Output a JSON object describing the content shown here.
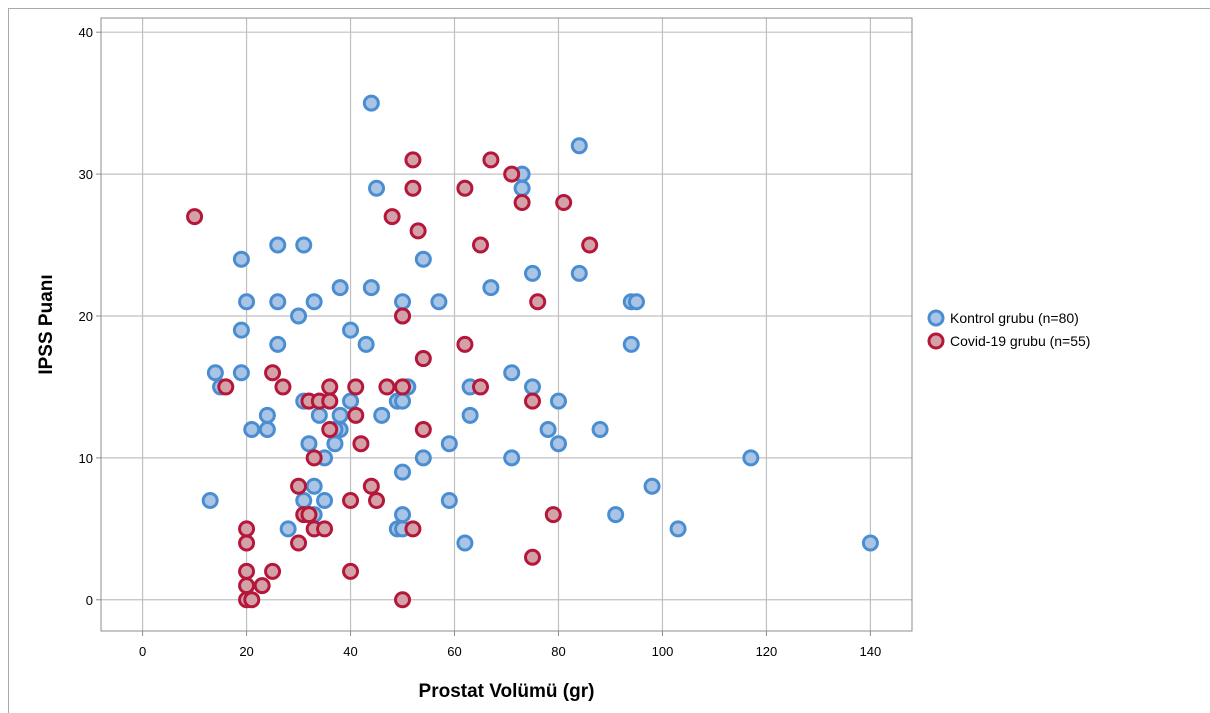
{
  "chart_data": {
    "type": "scatter",
    "xlabel": "Prostat Volümü (gr)",
    "ylabel": "IPSS Puanı",
    "xlim": [
      -8,
      148
    ],
    "ylim": [
      -2.2,
      41
    ],
    "xticks": [
      "0",
      "20",
      "40",
      "60",
      "80",
      "100",
      "120",
      "140"
    ],
    "yticks": [
      "0",
      "10",
      "20",
      "30",
      "40"
    ],
    "grid": true,
    "legend_position": "right",
    "series": [
      {
        "name": "Kontrol grubu (n=80)",
        "fill": "#a9c4e4",
        "stroke": "#4a8ed1",
        "points": [
          [
            44,
            35
          ],
          [
            45,
            29
          ],
          [
            84,
            32
          ],
          [
            73,
            30
          ],
          [
            73,
            29
          ],
          [
            19,
            24
          ],
          [
            26,
            25
          ],
          [
            31,
            25
          ],
          [
            54,
            24
          ],
          [
            75,
            23
          ],
          [
            84,
            23
          ],
          [
            20,
            21
          ],
          [
            26,
            21
          ],
          [
            33,
            21
          ],
          [
            30,
            20
          ],
          [
            38,
            22
          ],
          [
            44,
            22
          ],
          [
            50,
            21
          ],
          [
            50,
            20
          ],
          [
            57,
            21
          ],
          [
            67,
            22
          ],
          [
            94,
            21
          ],
          [
            95,
            21
          ],
          [
            19,
            19
          ],
          [
            40,
            19
          ],
          [
            26,
            18
          ],
          [
            43,
            18
          ],
          [
            94,
            18
          ],
          [
            14,
            16
          ],
          [
            15,
            15
          ],
          [
            19,
            16
          ],
          [
            71,
            16
          ],
          [
            51,
            15
          ],
          [
            63,
            15
          ],
          [
            75,
            15
          ],
          [
            31,
            14
          ],
          [
            34,
            14
          ],
          [
            40,
            14
          ],
          [
            49,
            14
          ],
          [
            50,
            14
          ],
          [
            80,
            14
          ],
          [
            24,
            13
          ],
          [
            34,
            13
          ],
          [
            38,
            13
          ],
          [
            46,
            13
          ],
          [
            63,
            13
          ],
          [
            21,
            12
          ],
          [
            24,
            12
          ],
          [
            38,
            12
          ],
          [
            78,
            12
          ],
          [
            88,
            12
          ],
          [
            32,
            11
          ],
          [
            37,
            11
          ],
          [
            59,
            11
          ],
          [
            80,
            11
          ],
          [
            35,
            10
          ],
          [
            54,
            10
          ],
          [
            71,
            10
          ],
          [
            117,
            10
          ],
          [
            50,
            9
          ],
          [
            33,
            8
          ],
          [
            98,
            8
          ],
          [
            13,
            7
          ],
          [
            31,
            7
          ],
          [
            35,
            7
          ],
          [
            59,
            7
          ],
          [
            32,
            6
          ],
          [
            50,
            6
          ],
          [
            91,
            6
          ],
          [
            28,
            5
          ],
          [
            49,
            5
          ],
          [
            103,
            5
          ],
          [
            62,
            4
          ],
          [
            140,
            4
          ],
          [
            51,
            15
          ],
          [
            36,
            14
          ],
          [
            32,
            14
          ],
          [
            37,
            12
          ],
          [
            33,
            6
          ],
          [
            50,
            5
          ]
        ]
      },
      {
        "name": "Covid-19 grubu (n=55)",
        "fill": "#d3a1a8",
        "stroke": "#b5173b",
        "points": [
          [
            10,
            27
          ],
          [
            52,
            31
          ],
          [
            67,
            31
          ],
          [
            71,
            30
          ],
          [
            52,
            29
          ],
          [
            62,
            29
          ],
          [
            73,
            28
          ],
          [
            81,
            28
          ],
          [
            48,
            27
          ],
          [
            53,
            26
          ],
          [
            65,
            25
          ],
          [
            86,
            25
          ],
          [
            76,
            21
          ],
          [
            50,
            20
          ],
          [
            62,
            18
          ],
          [
            54,
            17
          ],
          [
            16,
            15
          ],
          [
            25,
            16
          ],
          [
            27,
            15
          ],
          [
            36,
            15
          ],
          [
            41,
            15
          ],
          [
            47,
            15
          ],
          [
            50,
            15
          ],
          [
            65,
            15
          ],
          [
            32,
            14
          ],
          [
            34,
            14
          ],
          [
            36,
            14
          ],
          [
            75,
            14
          ],
          [
            41,
            13
          ],
          [
            36,
            12
          ],
          [
            54,
            12
          ],
          [
            42,
            11
          ],
          [
            33,
            10
          ],
          [
            30,
            8
          ],
          [
            44,
            8
          ],
          [
            40,
            7
          ],
          [
            45,
            7
          ],
          [
            31,
            6
          ],
          [
            79,
            6
          ],
          [
            20,
            5
          ],
          [
            33,
            5
          ],
          [
            35,
            5
          ],
          [
            52,
            5
          ],
          [
            20,
            4
          ],
          [
            30,
            4
          ],
          [
            75,
            3
          ],
          [
            20,
            2
          ],
          [
            25,
            2
          ],
          [
            40,
            2
          ],
          [
            20,
            1
          ],
          [
            23,
            1
          ],
          [
            20,
            0
          ],
          [
            21,
            0
          ],
          [
            50,
            0
          ],
          [
            32,
            6
          ]
        ]
      }
    ]
  }
}
